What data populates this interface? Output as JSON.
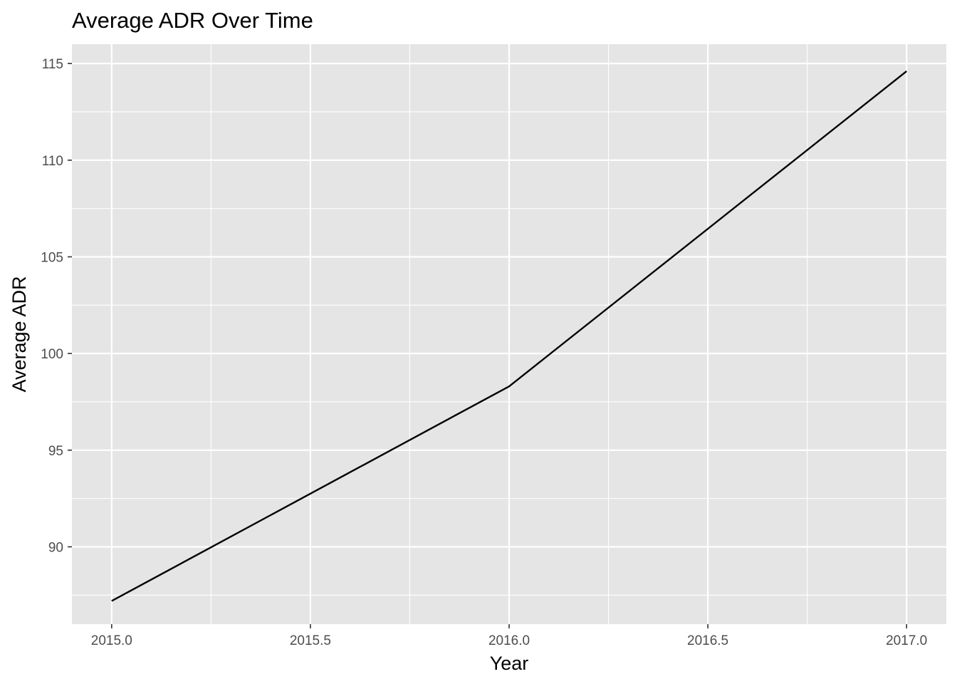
{
  "chart_data": {
    "type": "line",
    "title": "Average ADR Over Time",
    "xlabel": "Year",
    "ylabel": "Average ADR",
    "x": [
      2015,
      2016,
      2017
    ],
    "series": [
      {
        "values": [
          87.2,
          98.3,
          114.6
        ],
        "color": "#000000"
      }
    ],
    "xlim": [
      2014.9,
      2017.1
    ],
    "ylim": [
      86.0,
      116.0
    ],
    "x_ticks": [
      2015.0,
      2015.5,
      2016.0,
      2016.5,
      2017.0
    ],
    "x_tick_labels": [
      "2015.0",
      "2015.5",
      "2016.0",
      "2016.5",
      "2017.0"
    ],
    "y_ticks": [
      90,
      95,
      100,
      105,
      110,
      115
    ],
    "y_tick_labels": [
      "90",
      "95",
      "100",
      "105",
      "110",
      "115"
    ],
    "grid": true,
    "legend": "none",
    "panel_color": "#e5e5e5",
    "grid_color": "#ffffff"
  }
}
